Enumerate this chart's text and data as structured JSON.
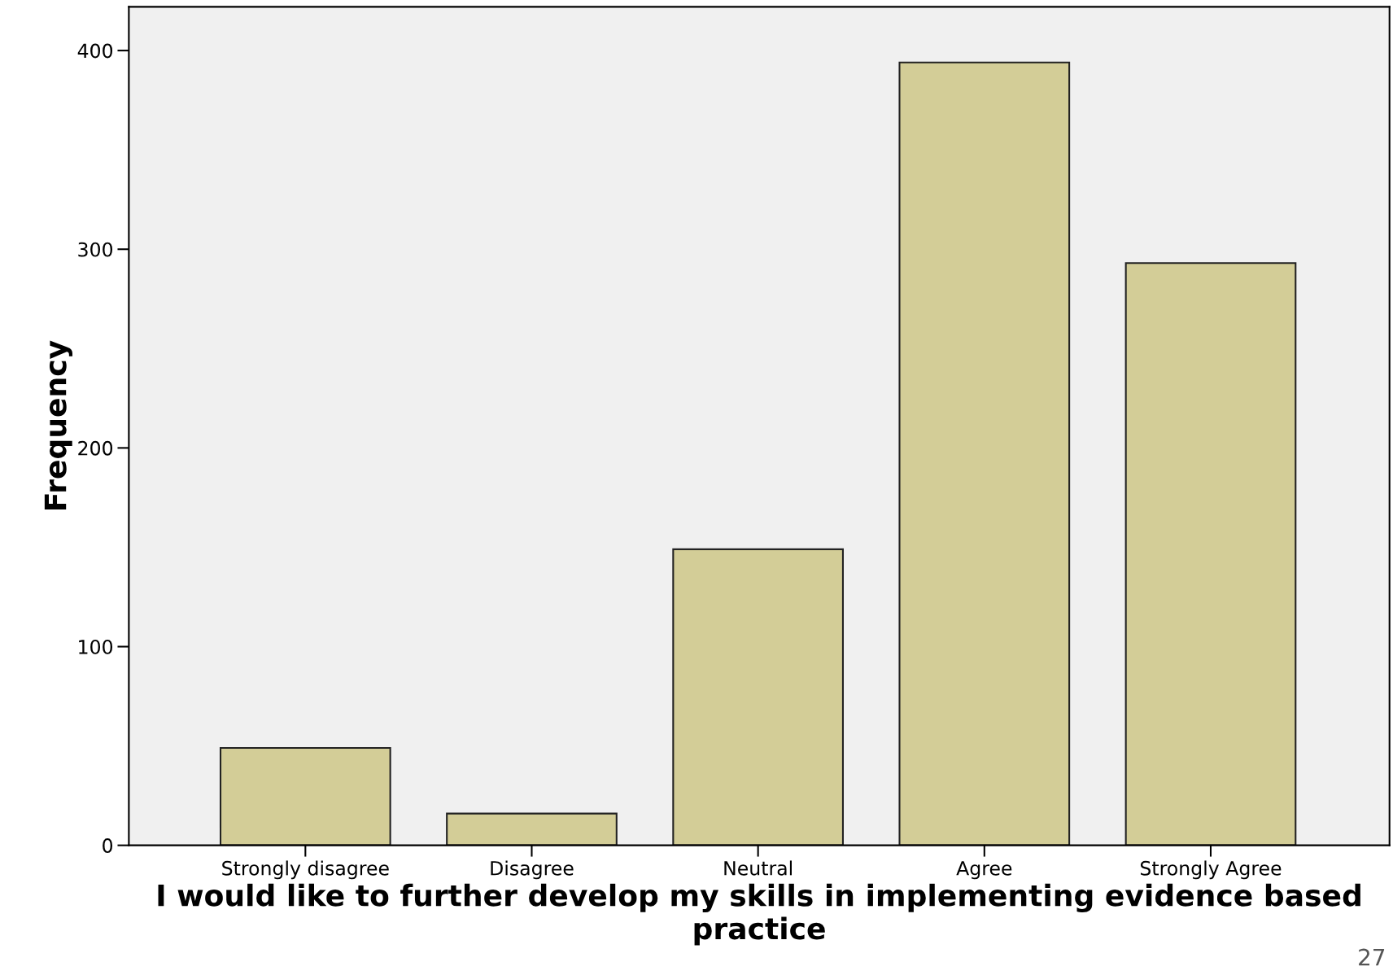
{
  "chart_data": {
    "type": "bar",
    "categories": [
      "Strongly disagree",
      "Disagree",
      "Neutral",
      "Agree",
      "Strongly Agree"
    ],
    "values": [
      49,
      16,
      149,
      394,
      293
    ],
    "color": "#d3cd97",
    "xlabel": "I would like to further develop my skills in implementing evidence based practice",
    "ylabel": "Frequency",
    "ylim": [
      0,
      422
    ],
    "yticks": [
      0,
      100,
      200,
      300,
      400
    ],
    "grid": false,
    "annotations": [
      "27"
    ]
  }
}
